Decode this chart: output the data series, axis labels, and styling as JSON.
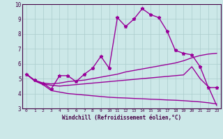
{
  "xlabel": "Windchill (Refroidissement éolien,°C)",
  "bg_color": "#cce8e8",
  "line_color": "#990099",
  "grid_color": "#aacccc",
  "spine_color": "#440044",
  "xlim": [
    -0.5,
    23.5
  ],
  "ylim": [
    3,
    10
  ],
  "yticks": [
    3,
    4,
    5,
    6,
    7,
    8,
    9,
    10
  ],
  "xticks": [
    0,
    1,
    2,
    3,
    4,
    5,
    6,
    7,
    8,
    9,
    10,
    11,
    12,
    13,
    14,
    15,
    16,
    17,
    18,
    19,
    20,
    21,
    22,
    23
  ],
  "series": [
    {
      "x": [
        0,
        1,
        2,
        3,
        4,
        5,
        6,
        7,
        8,
        9,
        10,
        11,
        12,
        13,
        14,
        15,
        16,
        17,
        18,
        19,
        20,
        21,
        22,
        23
      ],
      "y": [
        5.3,
        4.9,
        4.7,
        4.3,
        5.2,
        5.2,
        4.8,
        5.3,
        5.7,
        6.5,
        5.7,
        9.1,
        8.5,
        9.0,
        9.7,
        9.3,
        9.1,
        8.2,
        6.9,
        6.7,
        6.6,
        5.8,
        4.4,
        4.4
      ],
      "marker": "*",
      "linewidth": 1.0,
      "markersize": 3.5
    },
    {
      "x": [
        0,
        1,
        2,
        3,
        4,
        5,
        6,
        7,
        8,
        9,
        10,
        11,
        12,
        13,
        14,
        15,
        16,
        17,
        18,
        19,
        20,
        21,
        22,
        23
      ],
      "y": [
        5.3,
        4.85,
        4.7,
        4.65,
        4.7,
        4.8,
        4.85,
        4.9,
        5.0,
        5.1,
        5.2,
        5.3,
        5.45,
        5.55,
        5.65,
        5.75,
        5.85,
        5.95,
        6.05,
        6.2,
        6.4,
        6.55,
        6.65,
        6.7
      ],
      "marker": null,
      "linewidth": 1.0,
      "markersize": 0
    },
    {
      "x": [
        0,
        1,
        2,
        3,
        4,
        5,
        6,
        7,
        8,
        9,
        10,
        11,
        12,
        13,
        14,
        15,
        16,
        17,
        18,
        19,
        20,
        21,
        22,
        23
      ],
      "y": [
        5.3,
        4.85,
        4.65,
        4.55,
        4.5,
        4.55,
        4.6,
        4.65,
        4.7,
        4.75,
        4.8,
        4.85,
        4.9,
        4.95,
        5.0,
        5.05,
        5.1,
        5.15,
        5.2,
        5.25,
        5.8,
        5.0,
        4.45,
        3.2
      ],
      "marker": null,
      "linewidth": 1.0,
      "markersize": 0
    },
    {
      "x": [
        0,
        1,
        2,
        3,
        4,
        5,
        6,
        7,
        8,
        9,
        10,
        11,
        12,
        13,
        14,
        15,
        16,
        17,
        18,
        19,
        20,
        21,
        22,
        23
      ],
      "y": [
        5.3,
        4.85,
        4.6,
        4.2,
        4.1,
        4.0,
        3.95,
        3.9,
        3.85,
        3.8,
        3.75,
        3.72,
        3.7,
        3.67,
        3.65,
        3.62,
        3.6,
        3.57,
        3.55,
        3.52,
        3.48,
        3.44,
        3.38,
        3.3
      ],
      "marker": null,
      "linewidth": 1.0,
      "markersize": 0
    }
  ]
}
